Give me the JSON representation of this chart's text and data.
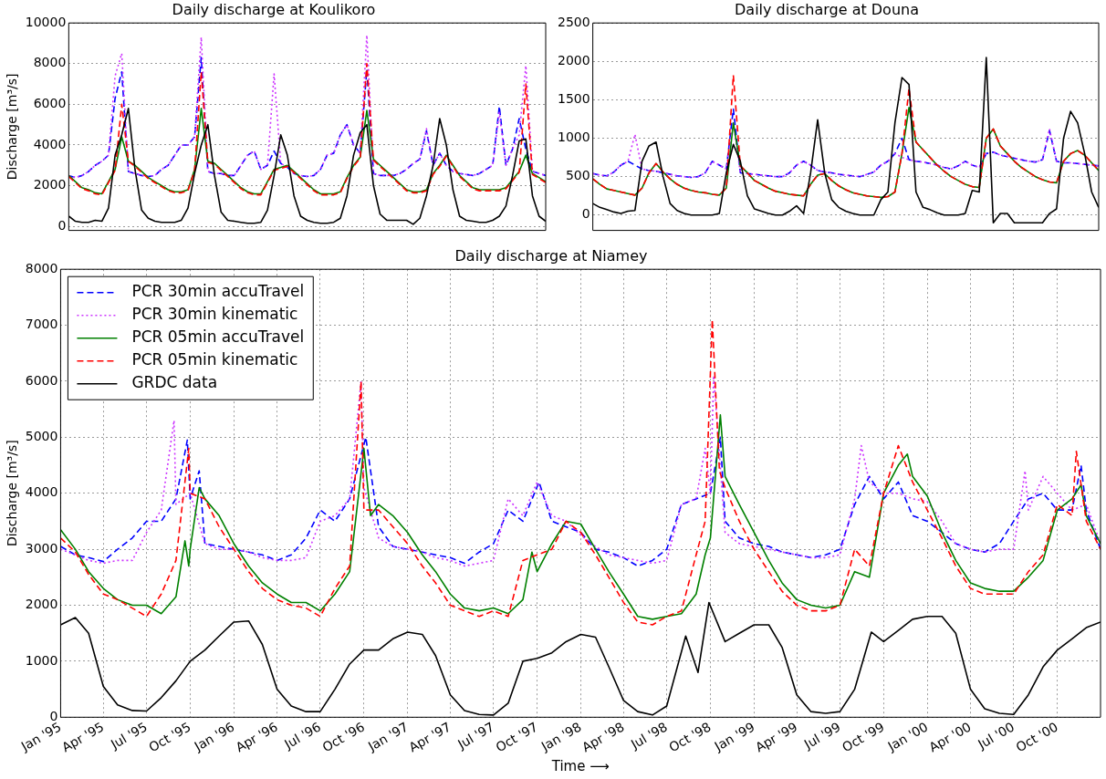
{
  "chart_data": [
    {
      "type": "line",
      "title": "Daily discharge at Koulikoro",
      "ylabel": "Discharge [m³/s]",
      "ylim": [
        -200,
        10000
      ],
      "yticks": [
        0,
        2000,
        4000,
        6000,
        8000,
        10000
      ],
      "categories": [
        null,
        null,
        null,
        null,
        null,
        null,
        null,
        null,
        null,
        null,
        null,
        null,
        null,
        null,
        null,
        null,
        null,
        null,
        null,
        null,
        null,
        null,
        null,
        null,
        null,
        null,
        null,
        null,
        null,
        null,
        null,
        null,
        null,
        null,
        null,
        null,
        null,
        null,
        null,
        null,
        null,
        null,
        null,
        null,
        null,
        null,
        null,
        null,
        null,
        null,
        null,
        null,
        null,
        null,
        null,
        null,
        null,
        null,
        null,
        null,
        null,
        null,
        null,
        null,
        null,
        null,
        null,
        null,
        null,
        null,
        null,
        null,
        null
      ],
      "tick_labels": "y",
      "grid": "y",
      "legend": false,
      "series": [
        {
          "color": "#0000ff",
          "line_style": "dashed",
          "values": [
            2500,
            2400,
            2500,
            2700,
            3000,
            3200,
            3500,
            6300,
            7600,
            2700,
            2600,
            2500,
            2450,
            2500,
            2800,
            3000,
            3500,
            4000,
            4000,
            4400,
            8300,
            2700,
            2600,
            2600,
            2500,
            2500,
            3000,
            3500,
            3700,
            2800,
            3000,
            3700,
            3100,
            2900,
            2600,
            2500,
            2450,
            2500,
            2800,
            3500,
            3600,
            4500,
            5000,
            4000,
            3600,
            7700,
            2600,
            2500,
            2500,
            2500,
            2600,
            2800,
            3100,
            3300,
            4700,
            3000,
            3600,
            3000,
            2700,
            2600,
            2550,
            2500,
            2600,
            2800,
            3000,
            5900,
            3000,
            3800,
            5300,
            3800,
            2700,
            2600,
            2500
          ]
        },
        {
          "color": "#cc33ff",
          "line_style": "dotted",
          "values": [
            2500,
            2400,
            2500,
            2700,
            3000,
            3200,
            3500,
            7400,
            8500,
            2700,
            2600,
            2500,
            2450,
            2500,
            2800,
            3000,
            3500,
            4000,
            4000,
            4400,
            9300,
            2700,
            2600,
            2600,
            2500,
            2500,
            3000,
            3500,
            3700,
            2800,
            3000,
            7500,
            3100,
            2900,
            2600,
            2500,
            2450,
            2500,
            2800,
            3500,
            3600,
            4500,
            5000,
            4000,
            3600,
            9400,
            2600,
            2500,
            2500,
            2500,
            2600,
            2800,
            3100,
            3300,
            4800,
            3000,
            3600,
            3000,
            2700,
            2600,
            2550,
            2500,
            2600,
            2800,
            3000,
            5600,
            3000,
            3800,
            4500,
            7900,
            2700,
            2600,
            2500
          ]
        },
        {
          "color": "#008000",
          "line_style": "solid",
          "values": [
            2500,
            2200,
            1900,
            1800,
            1650,
            1600,
            2200,
            2800,
            4400,
            3200,
            3000,
            2700,
            2400,
            2200,
            2000,
            1800,
            1700,
            1700,
            1800,
            2800,
            5800,
            3200,
            3100,
            2800,
            2500,
            2200,
            1900,
            1700,
            1600,
            1600,
            2200,
            2800,
            2900,
            3000,
            2700,
            2400,
            2100,
            1800,
            1600,
            1600,
            1600,
            1700,
            2400,
            3000,
            3400,
            5700,
            3300,
            3000,
            2700,
            2400,
            2100,
            1800,
            1700,
            1700,
            1800,
            2600,
            3000,
            3500,
            3000,
            2500,
            2200,
            1900,
            1800,
            1800,
            1800,
            1800,
            1900,
            2300,
            2700,
            3500,
            2600,
            2400,
            2200
          ]
        },
        {
          "color": "#ff0000",
          "line_style": "dashed",
          "values": [
            2450,
            2150,
            1850,
            1750,
            1600,
            1550,
            2150,
            2750,
            6000,
            3200,
            2950,
            2650,
            2350,
            2150,
            1950,
            1750,
            1650,
            1650,
            1750,
            2750,
            7600,
            3150,
            3050,
            2750,
            2450,
            2150,
            1850,
            1650,
            1550,
            1550,
            2150,
            2750,
            2850,
            2950,
            2650,
            2350,
            2050,
            1750,
            1550,
            1550,
            1550,
            1650,
            2350,
            2950,
            3350,
            8000,
            3250,
            2950,
            2650,
            2350,
            2050,
            1750,
            1650,
            1650,
            1750,
            2550,
            2950,
            3450,
            2950,
            2450,
            2150,
            1850,
            1750,
            1750,
            1750,
            1750,
            1850,
            2250,
            2650,
            7000,
            2550,
            2350,
            2150
          ]
        },
        {
          "color": "#000000",
          "line_style": "solid",
          "values": [
            500,
            250,
            200,
            200,
            300,
            250,
            900,
            3500,
            4500,
            5800,
            2800,
            800,
            400,
            250,
            200,
            200,
            200,
            300,
            900,
            2600,
            4000,
            5000,
            2500,
            700,
            300,
            250,
            200,
            150,
            150,
            200,
            800,
            2500,
            4500,
            3500,
            1500,
            500,
            300,
            200,
            150,
            150,
            200,
            400,
            1500,
            3500,
            4600,
            5000,
            2000,
            600,
            300,
            300,
            300,
            300,
            100,
            400,
            1500,
            3000,
            5300,
            4000,
            1800,
            500,
            300,
            250,
            200,
            200,
            300,
            500,
            1000,
            2500,
            4200,
            4300,
            1500,
            500,
            250
          ]
        }
      ]
    },
    {
      "type": "line",
      "title": "Daily discharge at Douna",
      "ylim": [
        -200,
        2500
      ],
      "yticks": [
        0,
        500,
        1000,
        1500,
        2000,
        2500
      ],
      "categories": [
        null,
        null,
        null,
        null,
        null,
        null,
        null,
        null,
        null,
        null,
        null,
        null,
        null,
        null,
        null,
        null,
        null,
        null,
        null,
        null,
        null,
        null,
        null,
        null,
        null,
        null,
        null,
        null,
        null,
        null,
        null,
        null,
        null,
        null,
        null,
        null,
        null,
        null,
        null,
        null,
        null,
        null,
        null,
        null,
        null,
        null,
        null,
        null,
        null,
        null,
        null,
        null,
        null,
        null,
        null,
        null,
        null,
        null,
        null,
        null,
        null,
        null,
        null,
        null,
        null,
        null,
        null,
        null,
        null,
        null,
        null,
        null,
        null
      ],
      "tick_labels": "y",
      "grid": "y",
      "legend": false,
      "series": [
        {
          "color": "#0000ff",
          "line_style": "dashed",
          "values": [
            540,
            520,
            510,
            560,
            650,
            700,
            650,
            600,
            580,
            570,
            550,
            530,
            510,
            500,
            490,
            500,
            550,
            700,
            650,
            600,
            1380,
            550,
            540,
            530,
            520,
            510,
            500,
            500,
            550,
            650,
            700,
            650,
            580,
            560,
            550,
            530,
            520,
            510,
            500,
            530,
            560,
            650,
            700,
            800,
            1000,
            720,
            700,
            690,
            670,
            650,
            620,
            600,
            640,
            700,
            650,
            620,
            800,
            820,
            780,
            760,
            740,
            720,
            700,
            690,
            720,
            1100,
            700,
            680,
            680,
            670,
            660,
            650,
            640
          ]
        },
        {
          "color": "#cc33ff",
          "line_style": "dotted",
          "values": [
            540,
            520,
            510,
            560,
            650,
            700,
            1050,
            600,
            580,
            570,
            550,
            530,
            510,
            500,
            490,
            500,
            550,
            700,
            650,
            600,
            1200,
            550,
            540,
            530,
            520,
            510,
            500,
            500,
            550,
            650,
            700,
            650,
            580,
            560,
            550,
            530,
            520,
            510,
            500,
            530,
            560,
            650,
            700,
            800,
            750,
            720,
            700,
            690,
            670,
            650,
            620,
            600,
            640,
            700,
            650,
            620,
            800,
            820,
            780,
            760,
            740,
            720,
            700,
            690,
            720,
            1120,
            700,
            680,
            680,
            670,
            660,
            650,
            640
          ]
        },
        {
          "color": "#008000",
          "line_style": "solid",
          "values": [
            470,
            400,
            340,
            320,
            300,
            280,
            260,
            350,
            550,
            670,
            560,
            470,
            400,
            350,
            320,
            300,
            290,
            270,
            260,
            350,
            1200,
            640,
            550,
            450,
            400,
            350,
            310,
            290,
            270,
            260,
            250,
            400,
            520,
            540,
            450,
            380,
            330,
            290,
            270,
            250,
            240,
            230,
            240,
            300,
            800,
            1400,
            950,
            850,
            750,
            650,
            570,
            500,
            450,
            400,
            370,
            360,
            1000,
            1120,
            900,
            800,
            700,
            620,
            560,
            500,
            460,
            430,
            420,
            700,
            800,
            840,
            780,
            680,
            580
          ]
        },
        {
          "color": "#ff0000",
          "line_style": "dashed",
          "values": [
            470,
            400,
            340,
            320,
            300,
            280,
            260,
            350,
            550,
            670,
            560,
            470,
            400,
            350,
            320,
            300,
            290,
            270,
            260,
            350,
            1820,
            640,
            550,
            450,
            400,
            350,
            310,
            290,
            270,
            260,
            250,
            400,
            520,
            540,
            450,
            380,
            330,
            290,
            270,
            250,
            240,
            230,
            240,
            300,
            800,
            1650,
            950,
            850,
            750,
            650,
            570,
            500,
            450,
            400,
            370,
            360,
            1000,
            1120,
            900,
            800,
            700,
            620,
            560,
            500,
            460,
            430,
            420,
            700,
            800,
            840,
            780,
            680,
            580
          ]
        },
        {
          "color": "#000000",
          "line_style": "solid",
          "values": [
            150,
            100,
            70,
            40,
            20,
            50,
            60,
            700,
            900,
            950,
            500,
            150,
            60,
            20,
            0,
            0,
            0,
            0,
            20,
            550,
            920,
            700,
            250,
            80,
            50,
            20,
            0,
            0,
            50,
            120,
            20,
            550,
            1240,
            550,
            200,
            100,
            50,
            20,
            0,
            0,
            0,
            200,
            300,
            1200,
            1790,
            1700,
            300,
            100,
            70,
            30,
            0,
            0,
            0,
            20,
            320,
            300,
            2050,
            -100,
            20,
            20,
            -100,
            -100,
            -100,
            -100,
            -100,
            20,
            80,
            1000,
            1350,
            1200,
            800,
            300,
            100
          ]
        }
      ]
    },
    {
      "type": "line",
      "title": "Daily discharge at Niamey",
      "xlabel": "Time ⟶",
      "ylabel": "Discharge [m³/s]",
      "xlim": [
        "1995-01-01",
        "2000-12-31"
      ],
      "ylim": [
        0,
        8000
      ],
      "yticks": [
        0,
        1000,
        2000,
        3000,
        4000,
        5000,
        6000,
        7000,
        8000
      ],
      "xticks": [
        {
          "value": "1995-01-01",
          "label": "Jan '95"
        },
        {
          "value": "1995-04-01",
          "label": "Apr '95"
        },
        {
          "value": "1995-07-01",
          "label": "Jul '95"
        },
        {
          "value": "1995-10-01",
          "label": "Oct '95"
        },
        {
          "value": "1996-01-01",
          "label": "Jan '96"
        },
        {
          "value": "1996-04-01",
          "label": "Apr '96"
        },
        {
          "value": "1996-07-01",
          "label": "Jul '96"
        },
        {
          "value": "1996-10-01",
          "label": "Oct '96"
        },
        {
          "value": "1997-01-01",
          "label": "Jan '97"
        },
        {
          "value": "1997-04-01",
          "label": "Apr '97"
        },
        {
          "value": "1997-07-01",
          "label": "Jul '97"
        },
        {
          "value": "1997-10-01",
          "label": "Oct '97"
        },
        {
          "value": "1998-01-01",
          "label": "Jan '98"
        },
        {
          "value": "1998-04-01",
          "label": "Apr '98"
        },
        {
          "value": "1998-07-01",
          "label": "Jul '98"
        },
        {
          "value": "1998-10-01",
          "label": "Oct '98"
        },
        {
          "value": "1999-01-01",
          "label": "Jan '99"
        },
        {
          "value": "1999-04-01",
          "label": "Apr '99"
        },
        {
          "value": "1999-07-01",
          "label": "Jul '99"
        },
        {
          "value": "1999-10-01",
          "label": "Oct '99"
        },
        {
          "value": "2000-01-01",
          "label": "Jan '00"
        },
        {
          "value": "2000-04-01",
          "label": "Apr '00"
        },
        {
          "value": "2000-07-01",
          "label": "Jul '00"
        },
        {
          "value": "2000-10-01",
          "label": "Oct '00"
        }
      ],
      "grid": true,
      "legend": "top left",
      "series": [
        {
          "name": "PCR 30min accuTravel",
          "color": "#0000ff",
          "line_style": "dashed",
          "x": [
            "1995-01",
            "1995-02",
            "1995-03",
            "1995-04",
            "1995-05",
            "1995-06",
            "1995-07",
            "1995-08",
            "1995-09",
            "1995-09-25",
            "1995-10",
            "1995-10-20",
            "1995-11",
            "1995-12",
            "1996-01",
            "1996-02",
            "1996-03",
            "1996-04",
            "1996-05",
            "1996-06",
            "1996-07",
            "1996-08",
            "1996-09",
            "1996-10-05",
            "1996-11",
            "1996-12",
            "1997-01",
            "1997-02",
            "1997-03",
            "1997-04",
            "1997-05",
            "1997-06",
            "1997-07",
            "1997-08",
            "1997-09",
            "1997-10-05",
            "1997-11",
            "1997-12",
            "1998-01",
            "1998-02",
            "1998-03",
            "1998-04",
            "1998-05",
            "1998-06",
            "1998-07",
            "1998-08",
            "1998-09",
            "1998-10",
            "1998-10-22",
            "1998-11",
            "1998-12",
            "1999-01",
            "1999-02",
            "1999-03",
            "1999-04",
            "1999-05",
            "1999-06",
            "1999-07",
            "1999-08",
            "1999-09",
            "1999-10",
            "1999-11",
            "1999-12",
            "2000-01",
            "2000-02",
            "2000-03",
            "2000-04",
            "2000-05",
            "2000-06",
            "2000-07",
            "2000-08",
            "2000-09",
            "2000-10",
            "2000-11",
            "2000-11-20",
            "2000-12",
            "2000-12-31"
          ],
          "values": [
            3050,
            2900,
            2850,
            2780,
            3000,
            3200,
            3500,
            3500,
            3900,
            4950,
            3900,
            4400,
            3100,
            3050,
            3000,
            2950,
            2900,
            2800,
            2900,
            3200,
            3700,
            3500,
            3900,
            5000,
            3400,
            3050,
            3000,
            2950,
            2900,
            2850,
            2750,
            2950,
            3100,
            3700,
            3500,
            4200,
            3500,
            3400,
            3300,
            3000,
            2950,
            2850,
            2700,
            2800,
            3000,
            3800,
            3900,
            4000,
            5000,
            3500,
            3200,
            3100,
            3050,
            2950,
            2900,
            2850,
            2900,
            3000,
            3800,
            4300,
            3900,
            4200,
            3600,
            3500,
            3300,
            3100,
            3000,
            2950,
            3100,
            3500,
            3900,
            4000,
            3700,
            3700,
            4500,
            3700,
            3000
          ]
        },
        {
          "name": "PCR 30min kinematic",
          "color": "#cc33ff",
          "line_style": "dotted",
          "x": [
            "1995-01",
            "1995-02",
            "1995-03",
            "1995-04",
            "1995-05",
            "1995-06",
            "1995-07",
            "1995-08",
            "1995-08-28",
            "1995-09",
            "1995-10",
            "1995-11",
            "1995-12",
            "1996-01",
            "1996-02",
            "1996-03",
            "1996-04",
            "1996-05",
            "1996-06",
            "1996-07",
            "1996-08",
            "1996-09",
            "1996-09-25",
            "1996-10",
            "1996-11",
            "1996-12",
            "1997-01",
            "1997-02",
            "1997-03",
            "1997-04",
            "1997-05",
            "1997-06",
            "1997-07",
            "1997-08",
            "1997-09",
            "1997-10",
            "1997-11",
            "1997-12",
            "1998-01",
            "1998-02",
            "1998-03",
            "1998-04",
            "1998-05",
            "1998-06",
            "1998-07",
            "1998-08",
            "1998-09",
            "1998-09-20",
            "1998-10",
            "1998-10-08",
            "1998-11",
            "1998-12",
            "1999-01",
            "1999-02",
            "1999-03",
            "1999-04",
            "1999-05",
            "1999-06",
            "1999-07",
            "1999-08",
            "1999-08-15",
            "1999-09",
            "1999-10",
            "1999-11",
            "1999-12",
            "2000-01",
            "2000-02",
            "2000-03",
            "2000-04",
            "2000-05",
            "2000-06",
            "2000-07",
            "2000-07-25",
            "2000-08",
            "2000-09",
            "2000-10",
            "2000-11",
            "2000-12",
            "2000-12-31"
          ],
          "values": [
            3000,
            2900,
            2800,
            2750,
            2800,
            2800,
            3300,
            3700,
            5300,
            3800,
            4000,
            3100,
            3000,
            3000,
            2950,
            2850,
            2800,
            2800,
            2850,
            3500,
            3600,
            3900,
            6000,
            4100,
            3200,
            3050,
            3000,
            2950,
            2850,
            2800,
            2700,
            2750,
            2800,
            3900,
            3600,
            4200,
            3600,
            3500,
            3250,
            3050,
            2900,
            2850,
            2800,
            2750,
            2800,
            3800,
            3900,
            4800,
            4000,
            6100,
            3300,
            3100,
            3050,
            3000,
            2950,
            2900,
            2850,
            2850,
            2900,
            3900,
            4850,
            4200,
            4000,
            4000,
            3900,
            3850,
            3500,
            3100,
            3000,
            2950,
            3000,
            3000,
            4400,
            3700,
            4300,
            4000,
            3700,
            3800,
            3100
          ]
        },
        {
          "name": "PCR 05min accuTravel",
          "color": "#008000",
          "line_style": "solid",
          "x": [
            "1995-01",
            "1995-02",
            "1995-03",
            "1995-04",
            "1995-05",
            "1995-06",
            "1995-07",
            "1995-08",
            "1995-09",
            "1995-09-20",
            "1995-09-28",
            "1995-10",
            "1995-10-20",
            "1995-11",
            "1995-12",
            "1996-01",
            "1996-02",
            "1996-03",
            "1996-04",
            "1996-05",
            "1996-06",
            "1996-07",
            "1996-08",
            "1996-09",
            "1996-10",
            "1996-10-15",
            "1996-11",
            "1996-12",
            "1997-01",
            "1997-02",
            "1997-03",
            "1997-04",
            "1997-05",
            "1997-06",
            "1997-07",
            "1997-08",
            "1997-09",
            "1997-09-20",
            "1997-10",
            "1997-11",
            "1997-12",
            "1998-01",
            "1998-02",
            "1998-03",
            "1998-04",
            "1998-05",
            "1998-06",
            "1998-07",
            "1998-08",
            "1998-09",
            "1998-09-20",
            "1998-10",
            "1998-10-22",
            "1998-11",
            "1998-12",
            "1999-01",
            "1999-02",
            "1999-03",
            "1999-04",
            "1999-05",
            "1999-06",
            "1999-07",
            "1999-08",
            "1999-09",
            "1999-10",
            "1999-11",
            "1999-11-20",
            "1999-12",
            "2000-01",
            "2000-02",
            "2000-03",
            "2000-04",
            "2000-05",
            "2000-06",
            "2000-07",
            "2000-08",
            "2000-09",
            "2000-10",
            "2000-11",
            "2000-11-20",
            "2000-12",
            "2000-12-31"
          ],
          "values": [
            3350,
            3000,
            2600,
            2300,
            2100,
            2000,
            2000,
            1850,
            2150,
            3150,
            2700,
            3000,
            4100,
            3900,
            3600,
            3100,
            2700,
            2400,
            2200,
            2050,
            2050,
            1900,
            2200,
            2600,
            4800,
            3600,
            3800,
            3600,
            3300,
            2900,
            2600,
            2200,
            1950,
            1900,
            1950,
            1850,
            2100,
            2950,
            2600,
            3100,
            3500,
            3450,
            3000,
            2600,
            2200,
            1800,
            1750,
            1800,
            1850,
            2200,
            2900,
            3200,
            5400,
            4300,
            3800,
            3300,
            2800,
            2400,
            2100,
            2000,
            1950,
            2000,
            2600,
            2500,
            4000,
            4500,
            4700,
            4300,
            3950,
            3300,
            2800,
            2400,
            2300,
            2250,
            2250,
            2500,
            2800,
            3700,
            3900,
            4150,
            3600,
            3100
          ]
        },
        {
          "name": "PCR 05min kinematic",
          "color": "#ff0000",
          "line_style": "dashed",
          "x": [
            "1995-01",
            "1995-02",
            "1995-03",
            "1995-04",
            "1995-05",
            "1995-06",
            "1995-07",
            "1995-08",
            "1995-09",
            "1995-09-28",
            "1995-10",
            "1995-11",
            "1995-12",
            "1996-01",
            "1996-02",
            "1996-03",
            "1996-04",
            "1996-05",
            "1996-06",
            "1996-07",
            "1996-08",
            "1996-09",
            "1996-09-25",
            "1996-10",
            "1996-11",
            "1996-12",
            "1997-01",
            "1997-02",
            "1997-03",
            "1997-04",
            "1997-05",
            "1997-06",
            "1997-07",
            "1997-08",
            "1997-09",
            "1997-10",
            "1997-11",
            "1997-12",
            "1998-01",
            "1998-02",
            "1998-03",
            "1998-04",
            "1998-05",
            "1998-06",
            "1998-07",
            "1998-08",
            "1998-09",
            "1998-09-20",
            "1998-10-05",
            "1998-10-20",
            "1998-11",
            "1998-12",
            "1999-01",
            "1999-02",
            "1999-03",
            "1999-04",
            "1999-05",
            "1999-06",
            "1999-07",
            "1999-08",
            "1999-09",
            "1999-10",
            "1999-11",
            "1999-12",
            "2000-01",
            "2000-02",
            "2000-03",
            "2000-04",
            "2000-05",
            "2000-06",
            "2000-07",
            "2000-08",
            "2000-09",
            "2000-10",
            "2000-11",
            "2000-11-10",
            "2000-12",
            "2000-12-31"
          ],
          "values": [
            3200,
            2950,
            2550,
            2200,
            2100,
            1950,
            1800,
            2200,
            2800,
            4800,
            4000,
            3900,
            3400,
            3000,
            2600,
            2300,
            2100,
            2000,
            1950,
            1800,
            2300,
            2700,
            6000,
            3700,
            3700,
            3400,
            3100,
            2700,
            2400,
            2000,
            1900,
            1800,
            1900,
            1800,
            2800,
            2900,
            3000,
            3500,
            3300,
            2900,
            2500,
            2050,
            1700,
            1650,
            1800,
            1900,
            2900,
            3500,
            7100,
            4400,
            4100,
            3500,
            3000,
            2600,
            2250,
            2000,
            1900,
            1900,
            2000,
            3000,
            2700,
            4000,
            4850,
            4200,
            3700,
            3200,
            2700,
            2300,
            2200,
            2200,
            2200,
            2600,
            2900,
            3800,
            3600,
            4750,
            3500,
            3000
          ]
        },
        {
          "name": "GRDC data",
          "color": "#000000",
          "line_style": "solid",
          "x": [
            "1995-01",
            "1995-02",
            "1995-03",
            "1995-04",
            "1995-05",
            "1995-06",
            "1995-07",
            "1995-08",
            "1995-09",
            "1995-10",
            "1995-11",
            "1995-12",
            "1996-01",
            "1996-02",
            "1996-03",
            "1996-04",
            "1996-05",
            "1996-06",
            "1996-07",
            "1996-08",
            "1996-09",
            "1996-10",
            "1996-11",
            "1996-12",
            "1997-01",
            "1997-02",
            "1997-03",
            "1997-04",
            "1997-05",
            "1997-06",
            "1997-07",
            "1997-08",
            "1997-09",
            "1997-10",
            "1997-11",
            "1997-12",
            "1998-01",
            "1998-02",
            "1998-03",
            "1998-04",
            "1998-05",
            "1998-06",
            "1998-07",
            "1998-08-10",
            "1998-09-05",
            "1998-09-28",
            "1998-11",
            "1998-12",
            "1999-01",
            "1999-02",
            "1999-03",
            "1999-04",
            "1999-05",
            "1999-06",
            "1999-07",
            "1999-08",
            "1999-09-05",
            "1999-10",
            "1999-11",
            "1999-12",
            "2000-01",
            "2000-02",
            "2000-03",
            "2000-04",
            "2000-05",
            "2000-06",
            "2000-07",
            "2000-08",
            "2000-09",
            "2000-10",
            "2000-11",
            "2000-12",
            "2000-12-31"
          ],
          "values": [
            1650,
            1780,
            1500,
            550,
            220,
            120,
            110,
            350,
            650,
            1000,
            1200,
            1450,
            1700,
            1720,
            1300,
            500,
            200,
            100,
            100,
            500,
            950,
            1200,
            1200,
            1400,
            1520,
            1480,
            1100,
            400,
            120,
            50,
            40,
            250,
            1000,
            1050,
            1150,
            1350,
            1480,
            1430,
            900,
            300,
            100,
            40,
            200,
            1450,
            800,
            2050,
            1350,
            1500,
            1650,
            1650,
            1250,
            400,
            100,
            70,
            100,
            500,
            1520,
            1350,
            1550,
            1750,
            1800,
            1800,
            1500,
            500,
            150,
            70,
            50,
            400,
            900,
            1200,
            1400,
            1600,
            1700
          ]
        }
      ]
    }
  ]
}
